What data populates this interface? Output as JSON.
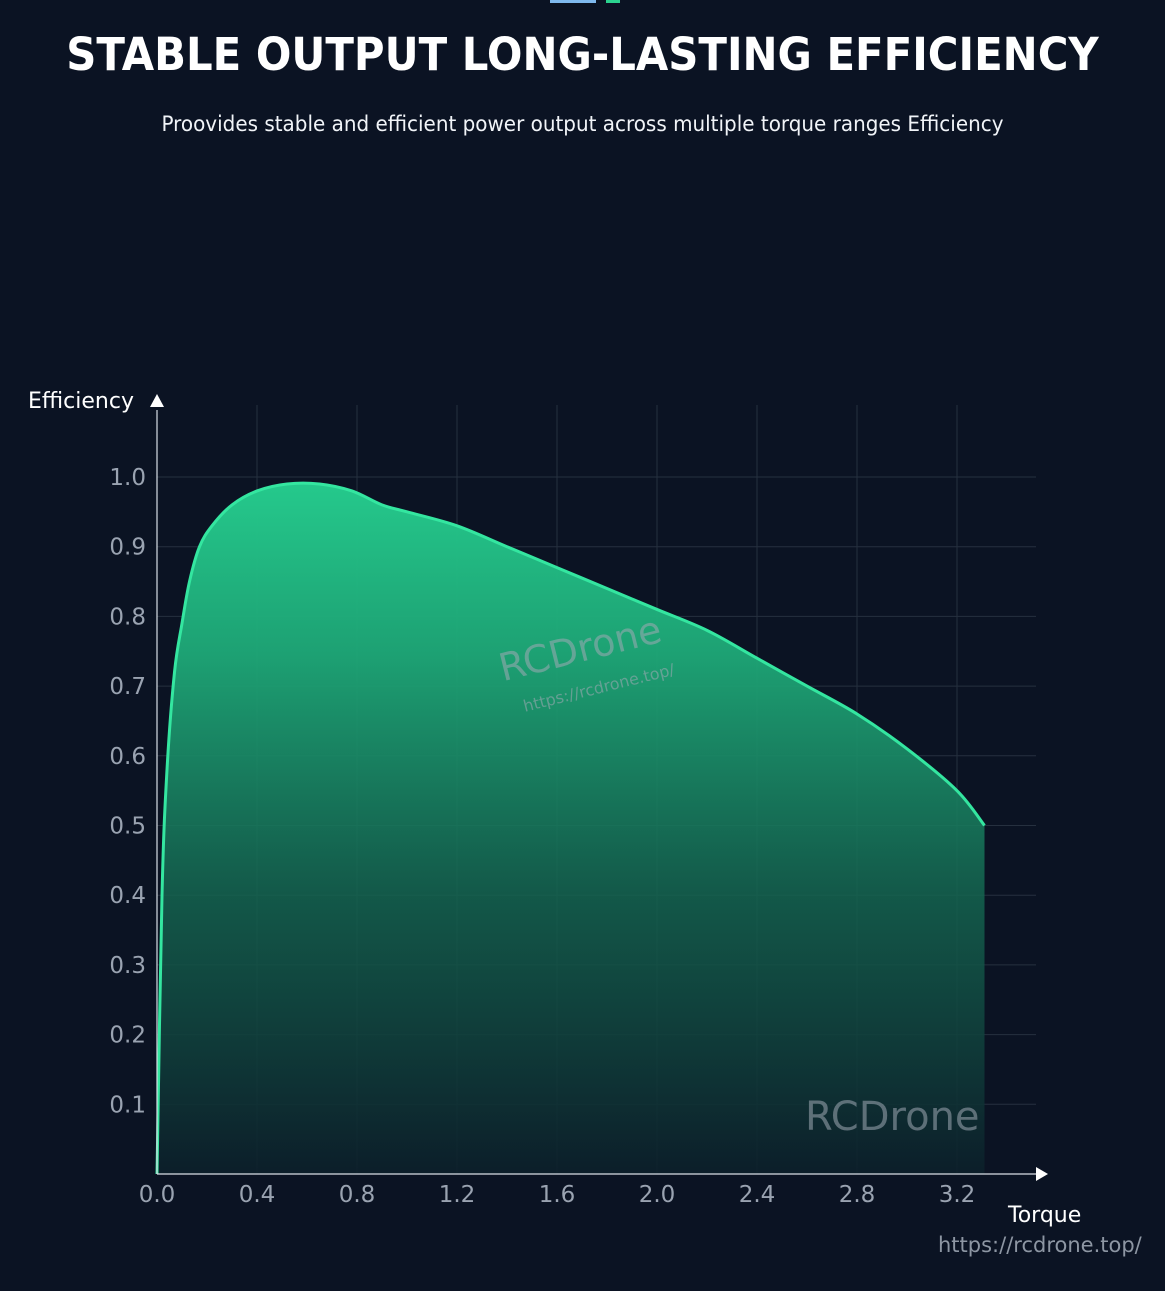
{
  "header": {
    "title": "STABLE OUTPUT LONG-LASTING EFFICIENCY",
    "subtitle": "Proovides stable and efficient power output across multiple torque ranges Efficiency"
  },
  "watermark": {
    "center_brand": "RCDrone",
    "center_url": "https://rcdrone.top/",
    "corner_brand": "RCDrone",
    "footer_url": "https://rcdrone.top/"
  },
  "colors": {
    "background": "#0b1323",
    "curve": "#2ee39a",
    "fill_top": "#22c98a",
    "grid": "#2a3445"
  },
  "chart_data": {
    "type": "area",
    "title": "",
    "xlabel": "Torque",
    "ylabel": "Efficiency",
    "xlim": [
      0.0,
      3.5
    ],
    "ylim": [
      0.0,
      1.1
    ],
    "x_ticks": [
      0.0,
      0.4,
      0.8,
      1.2,
      1.6,
      2.0,
      2.4,
      2.8,
      3.2
    ],
    "x_tick_labels": [
      "0.0",
      "0.4",
      "0.8",
      "1.2",
      "1.6",
      "2.0",
      "2.4",
      "2.8",
      "3.2"
    ],
    "y_ticks": [
      0.1,
      0.2,
      0.3,
      0.4,
      0.5,
      0.6,
      0.7,
      0.8,
      0.9,
      1.0
    ],
    "y_tick_labels": [
      "0.1",
      "0.2",
      "0.3",
      "0.4",
      "0.5",
      "0.6",
      "0.7",
      "0.8",
      "0.9",
      "1.0"
    ],
    "grid": true,
    "legend": "none",
    "series": [
      {
        "x": [
          0.0,
          0.02,
          0.04,
          0.07,
          0.1,
          0.13,
          0.17,
          0.22,
          0.3,
          0.4,
          0.52,
          0.65,
          0.78,
          0.9,
          1.0,
          1.2,
          1.4,
          1.6,
          1.8,
          2.0,
          2.2,
          2.4,
          2.6,
          2.8,
          3.0,
          3.2,
          3.31
        ],
        "y": [
          0.0,
          0.4,
          0.58,
          0.72,
          0.79,
          0.85,
          0.9,
          0.93,
          0.96,
          0.98,
          0.99,
          0.99,
          0.98,
          0.96,
          0.95,
          0.93,
          0.9,
          0.87,
          0.84,
          0.81,
          0.78,
          0.74,
          0.7,
          0.66,
          0.61,
          0.55,
          0.5
        ]
      }
    ]
  }
}
